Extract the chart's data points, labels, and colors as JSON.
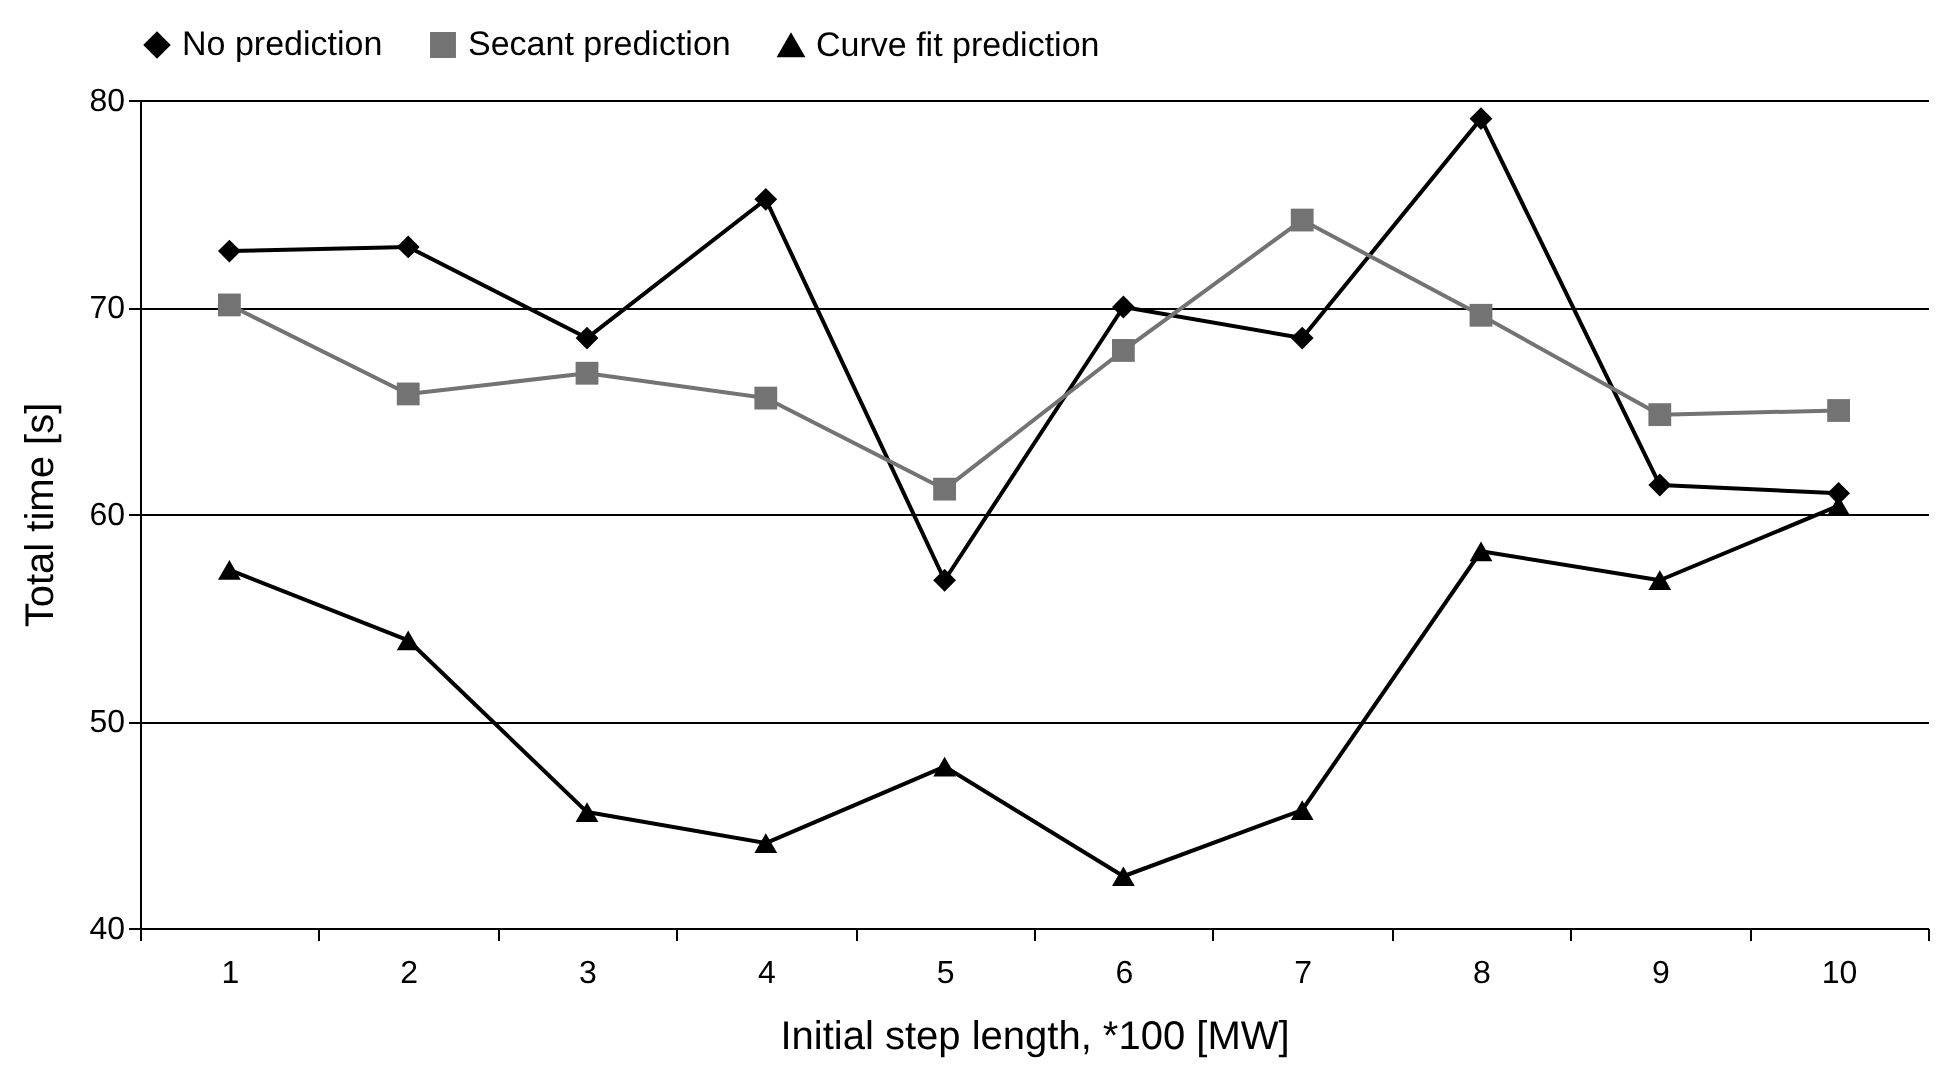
{
  "chart_data": {
    "type": "line",
    "xlabel": "Initial step length, *100 [MW]",
    "ylabel": "Total time [s]",
    "categories": [
      "1",
      "2",
      "3",
      "4",
      "5",
      "6",
      "7",
      "8",
      "9",
      "10"
    ],
    "series": [
      {
        "name": "No prediction",
        "color": "#000000",
        "marker": "diamond",
        "values": [
          72.7,
          72.9,
          68.5,
          75.2,
          56.8,
          70.0,
          68.5,
          79.1,
          61.4,
          61.0
        ]
      },
      {
        "name": "Secant prediction",
        "color": "#737373",
        "marker": "square",
        "values": [
          70.1,
          65.8,
          66.8,
          65.6,
          61.2,
          67.9,
          74.2,
          69.6,
          64.8,
          65.0
        ]
      },
      {
        "name": "Curve fit prediction",
        "color": "#000000",
        "marker": "triangle",
        "values": [
          57.3,
          53.9,
          45.6,
          44.1,
          47.8,
          42.5,
          45.7,
          58.2,
          56.8,
          60.4
        ]
      }
    ],
    "ylim": [
      40,
      80
    ],
    "yticks": [
      40,
      50,
      60,
      70,
      80
    ],
    "grid": "y",
    "legend": "top",
    "line_style": "solid"
  }
}
